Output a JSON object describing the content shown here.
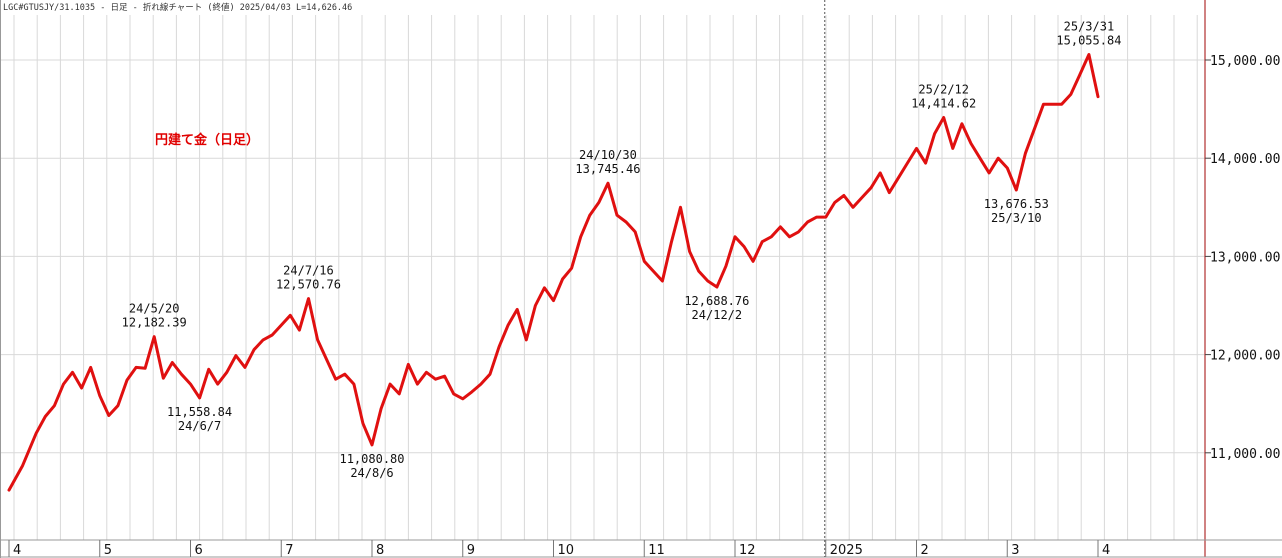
{
  "header": {
    "text": "LGC#GTUSJY/31.1035 - 日足 - 折れ線チャート (終値)  2025/04/03 L=14,626.46"
  },
  "colors": {
    "line": "#e01010",
    "grid": "#d9d9d9",
    "frame": "#b03030",
    "vline": "#555555"
  },
  "chart_data": {
    "type": "line",
    "title": "円建て金（日足）",
    "ylim": [
      10400,
      15400
    ],
    "yticks": [
      {
        "value": 11000,
        "label": "11,000.00"
      },
      {
        "value": 12000,
        "label": "12,000.00"
      },
      {
        "value": 13000,
        "label": "13,000.00"
      },
      {
        "value": 14000,
        "label": "14,000.00"
      },
      {
        "value": 15000,
        "label": "15,000.00"
      }
    ],
    "xlim": [
      0,
      240
    ],
    "xticks": [
      {
        "x": 0,
        "label": "4"
      },
      {
        "x": 20,
        "label": "5"
      },
      {
        "x": 40,
        "label": "6"
      },
      {
        "x": 60,
        "label": "7"
      },
      {
        "x": 80,
        "label": "8"
      },
      {
        "x": 100,
        "label": "9"
      },
      {
        "x": 120,
        "label": "10"
      },
      {
        "x": 140,
        "label": "11"
      },
      {
        "x": 160,
        "label": "12"
      },
      {
        "x": 180,
        "label": "2025"
      },
      {
        "x": 200,
        "label": "2"
      },
      {
        "x": 220,
        "label": "3"
      },
      {
        "x": 240,
        "label": "4"
      }
    ],
    "year_divider_x": 180,
    "series": [
      {
        "values": [
          [
            0,
            10620
          ],
          [
            3,
            10870
          ],
          [
            6,
            11200
          ],
          [
            8,
            11370
          ],
          [
            10,
            11480
          ],
          [
            12,
            11700
          ],
          [
            14,
            11820
          ],
          [
            16,
            11660
          ],
          [
            18,
            11870
          ],
          [
            20,
            11580
          ],
          [
            22,
            11380
          ],
          [
            24,
            11480
          ],
          [
            26,
            11740
          ],
          [
            28,
            11870
          ],
          [
            30,
            11860
          ],
          [
            32,
            12182.39
          ],
          [
            34,
            11760
          ],
          [
            36,
            11920
          ],
          [
            38,
            11800
          ],
          [
            40,
            11700
          ],
          [
            42,
            11558.84
          ],
          [
            44,
            11850
          ],
          [
            46,
            11700
          ],
          [
            48,
            11820
          ],
          [
            50,
            11990
          ],
          [
            52,
            11870
          ],
          [
            54,
            12050
          ],
          [
            56,
            12150
          ],
          [
            58,
            12200
          ],
          [
            60,
            12300
          ],
          [
            62,
            12400
          ],
          [
            64,
            12250
          ],
          [
            66,
            12570.76
          ],
          [
            68,
            12150
          ],
          [
            70,
            11950
          ],
          [
            72,
            11750
          ],
          [
            74,
            11800
          ],
          [
            76,
            11700
          ],
          [
            78,
            11300
          ],
          [
            80,
            11080.8
          ],
          [
            82,
            11450
          ],
          [
            84,
            11700
          ],
          [
            86,
            11600
          ],
          [
            88,
            11900
          ],
          [
            90,
            11700
          ],
          [
            92,
            11820
          ],
          [
            94,
            11750
          ],
          [
            96,
            11780
          ],
          [
            98,
            11600
          ],
          [
            100,
            11550
          ],
          [
            102,
            11620
          ],
          [
            104,
            11700
          ],
          [
            106,
            11800
          ],
          [
            108,
            12080
          ],
          [
            110,
            12300
          ],
          [
            112,
            12460
          ],
          [
            114,
            12150
          ],
          [
            116,
            12500
          ],
          [
            118,
            12680
          ],
          [
            120,
            12550
          ],
          [
            122,
            12770
          ],
          [
            124,
            12880
          ],
          [
            126,
            13200
          ],
          [
            128,
            13420
          ],
          [
            130,
            13550
          ],
          [
            132,
            13745.46
          ],
          [
            134,
            13420
          ],
          [
            136,
            13350
          ],
          [
            138,
            13250
          ],
          [
            140,
            12950
          ],
          [
            142,
            12850
          ],
          [
            144,
            12750
          ],
          [
            146,
            13150
          ],
          [
            148,
            13500
          ],
          [
            150,
            13050
          ],
          [
            152,
            12850
          ],
          [
            154,
            12750
          ],
          [
            156,
            12688.76
          ],
          [
            158,
            12900
          ],
          [
            160,
            13200
          ],
          [
            162,
            13100
          ],
          [
            164,
            12950
          ],
          [
            166,
            13150
          ],
          [
            168,
            13200
          ],
          [
            170,
            13300
          ],
          [
            172,
            13200
          ],
          [
            174,
            13250
          ],
          [
            176,
            13350
          ],
          [
            178,
            13400
          ],
          [
            180,
            13400
          ],
          [
            182,
            13550
          ],
          [
            184,
            13620
          ],
          [
            186,
            13500
          ],
          [
            188,
            13600
          ],
          [
            190,
            13700
          ],
          [
            192,
            13850
          ],
          [
            194,
            13650
          ],
          [
            196,
            13800
          ],
          [
            198,
            13950
          ],
          [
            200,
            14100
          ],
          [
            202,
            13950
          ],
          [
            204,
            14250
          ],
          [
            206,
            14414.62
          ],
          [
            208,
            14100
          ],
          [
            210,
            14350
          ],
          [
            212,
            14150
          ],
          [
            214,
            14000
          ],
          [
            216,
            13850
          ],
          [
            218,
            14000
          ],
          [
            220,
            13900
          ],
          [
            222,
            13676.53
          ],
          [
            224,
            14050
          ],
          [
            226,
            14300
          ],
          [
            228,
            14550
          ],
          [
            230,
            14550
          ],
          [
            232,
            14550
          ],
          [
            234,
            14650
          ],
          [
            236,
            14850
          ],
          [
            238,
            15055.84
          ],
          [
            240,
            14626.46
          ]
        ]
      }
    ],
    "annotations": [
      {
        "x": 32,
        "value": 12182.39,
        "lines": [
          "24/5/20",
          "12,182.39"
        ],
        "position": "above"
      },
      {
        "x": 42,
        "value": 11558.84,
        "lines": [
          "11,558.84",
          "24/6/7"
        ],
        "position": "below"
      },
      {
        "x": 66,
        "value": 12570.76,
        "lines": [
          "24/7/16",
          "12,570.76"
        ],
        "position": "above"
      },
      {
        "x": 80,
        "value": 11080.8,
        "lines": [
          "11,080.80",
          "24/8/6"
        ],
        "position": "below"
      },
      {
        "x": 132,
        "value": 13745.46,
        "lines": [
          "24/10/30",
          "13,745.46"
        ],
        "position": "above"
      },
      {
        "x": 156,
        "value": 12688.76,
        "lines": [
          "12,688.76",
          "24/12/2"
        ],
        "position": "below"
      },
      {
        "x": 206,
        "value": 14414.62,
        "lines": [
          "25/2/12",
          "14,414.62"
        ],
        "position": "above"
      },
      {
        "x": 222,
        "value": 13676.53,
        "lines": [
          "13,676.53",
          "25/3/10"
        ],
        "position": "below"
      },
      {
        "x": 238,
        "value": 15055.84,
        "lines": [
          "25/3/31",
          "15,055.84"
        ],
        "position": "above"
      }
    ]
  }
}
